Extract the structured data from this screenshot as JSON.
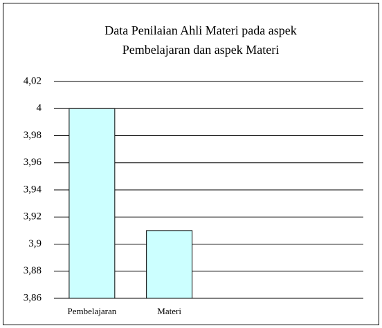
{
  "chart_data": {
    "type": "bar",
    "title": [
      "Data Penilaian Ahli Materi pada aspek",
      "Pembelajaran dan aspek Materi"
    ],
    "categories": [
      "Pembelajaran",
      "Materi",
      null,
      null
    ],
    "values": [
      4,
      3.91,
      null,
      null
    ],
    "color": "#ccffff",
    "ylim": [
      3.86,
      4.02
    ],
    "yticks": [
      {
        "value": 3.86,
        "label": "3,86"
      },
      {
        "value": 3.88,
        "label": "3,88"
      },
      {
        "value": 3.9,
        "label": "3,9"
      },
      {
        "value": 3.92,
        "label": "3,92"
      },
      {
        "value": 3.94,
        "label": "3,94"
      },
      {
        "value": 3.96,
        "label": "3,96"
      },
      {
        "value": 3.98,
        "label": "3,98"
      },
      4,
      {
        "value": 4.02,
        "label": "4,02"
      }
    ],
    "grid": true
  }
}
